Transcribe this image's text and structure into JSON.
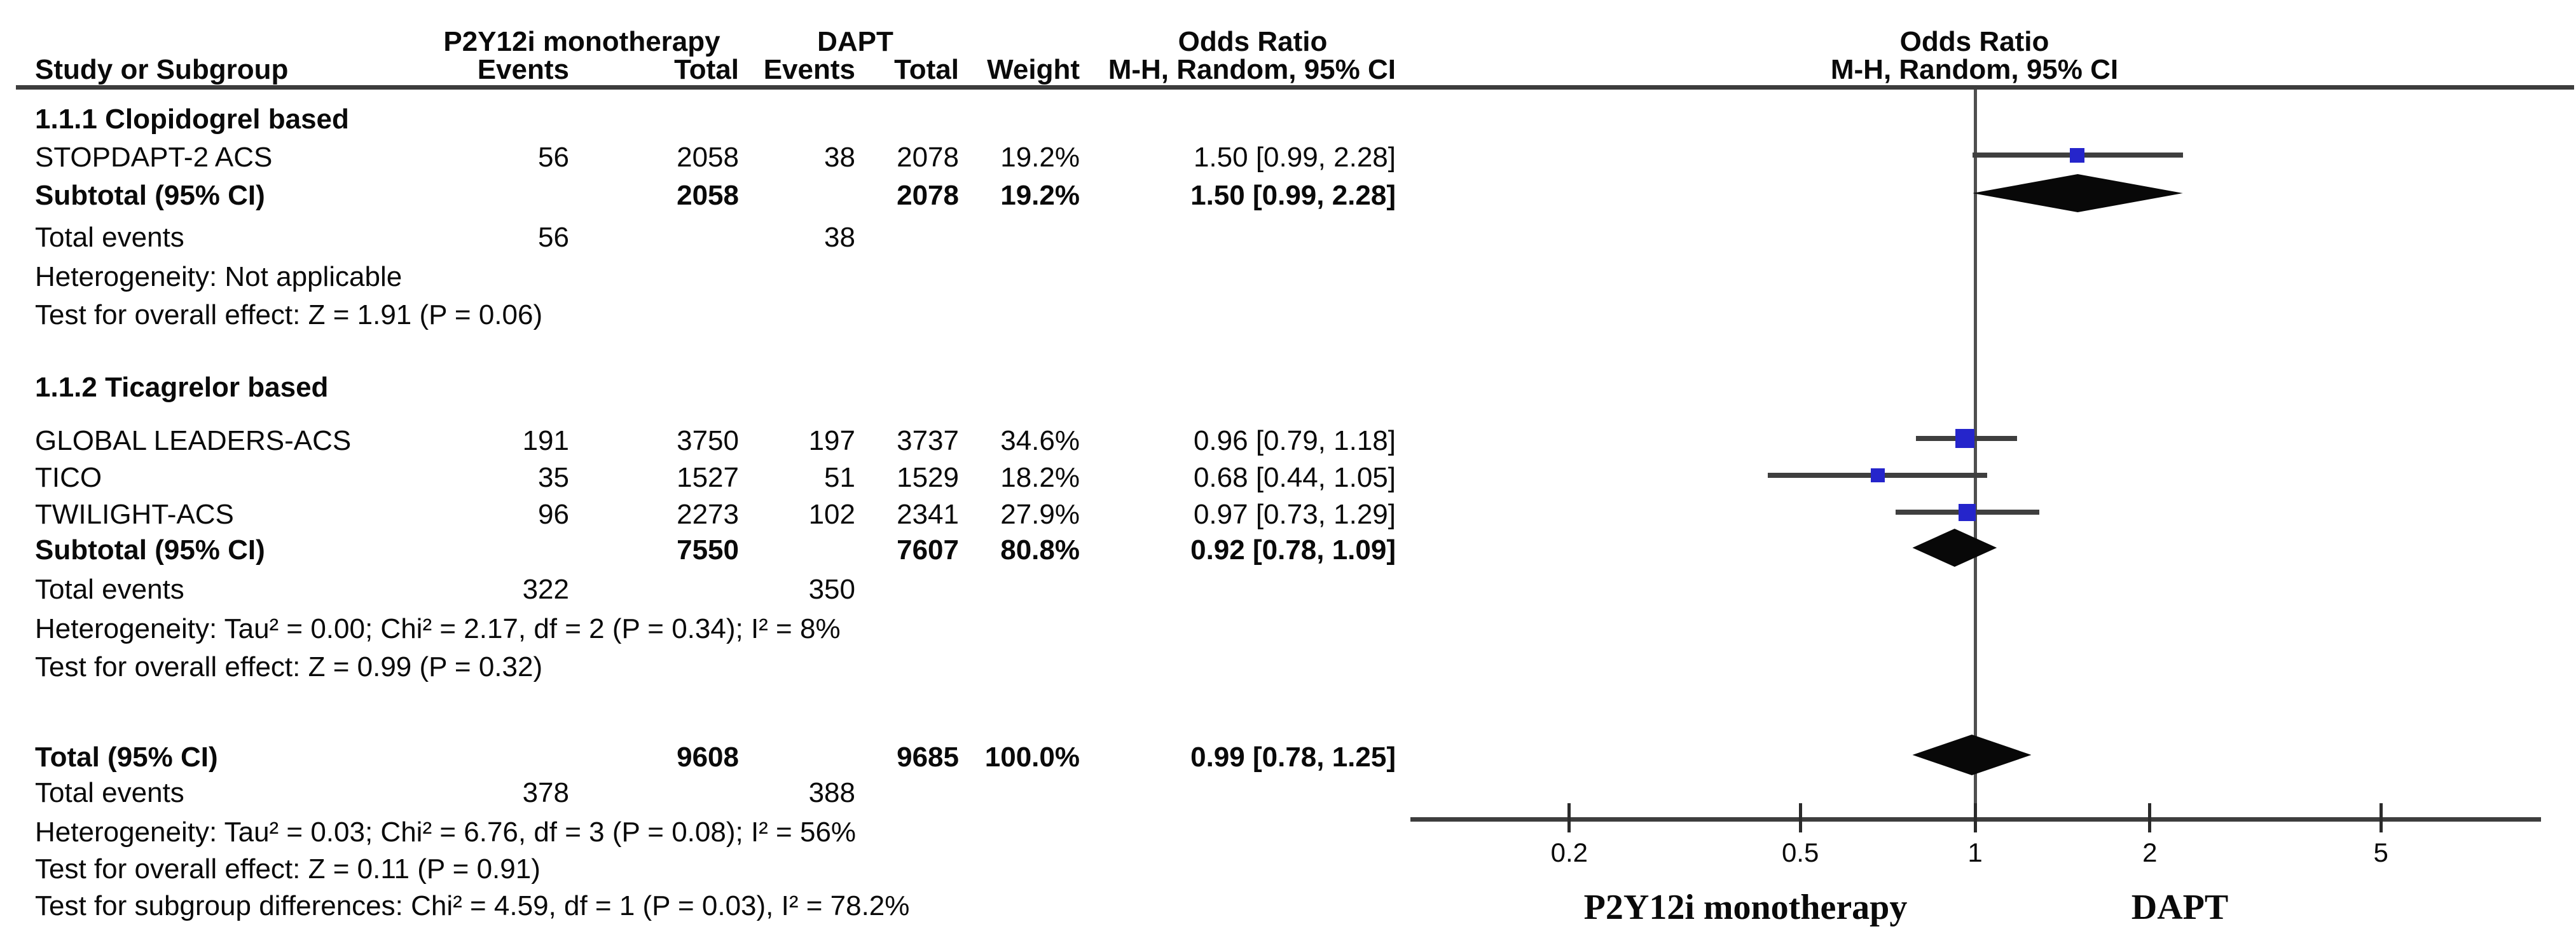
{
  "header": {
    "group1": "P2Y12i monotherapy",
    "group2": "DAPT",
    "study": "Study or Subgroup",
    "events": "Events",
    "total": "Total",
    "weight": "Weight",
    "or_title": "Odds Ratio",
    "or_sub": "M-H, Random, 95% CI",
    "plot_or_title": "Odds Ratio",
    "plot_or_sub": "M-H, Random, 95% CI"
  },
  "chart_data": {
    "type": "forest",
    "effect_measure": "Odds Ratio",
    "model": "M-H, Random, 95% CI",
    "x_axis": {
      "scale": "log",
      "ticks": [
        "0.2",
        "0.5",
        "1",
        "2",
        "5"
      ],
      "range": [
        0.106,
        9.4
      ],
      "left_label": "P2Y12i monotherapy",
      "right_label": "DAPT"
    },
    "subgroups": [
      {
        "name": "1.1.1 Clopidogrel based",
        "studies": [
          {
            "study": "STOPDAPT-2 ACS",
            "events1": "56",
            "total1": "2058",
            "events2": "38",
            "total2": "2078",
            "weight": "19.2%",
            "or_label": "1.50 [0.99, 2.28]",
            "or": 1.5,
            "ci_low": 0.99,
            "ci_high": 2.28
          }
        ],
        "subtotal": {
          "label": "Subtotal (95% CI)",
          "total1": "2058",
          "total2": "2078",
          "weight": "19.2%",
          "or_label": "1.50 [0.99, 2.28]",
          "or": 1.5,
          "ci_low": 0.99,
          "ci_high": 2.28
        },
        "total_events": {
          "label": "Total events",
          "events1": "56",
          "events2": "38"
        },
        "heterogeneity": "Heterogeneity: Not applicable",
        "overall_effect": "Test for overall effect: Z = 1.91 (P = 0.06)"
      },
      {
        "name": "1.1.2 Ticagrelor based",
        "studies": [
          {
            "study": "GLOBAL LEADERS-ACS",
            "events1": "191",
            "total1": "3750",
            "events2": "197",
            "total2": "3737",
            "weight": "34.6%",
            "or_label": "0.96 [0.79, 1.18]",
            "or": 0.96,
            "ci_low": 0.79,
            "ci_high": 1.18
          },
          {
            "study": "TICO",
            "events1": "35",
            "total1": "1527",
            "events2": "51",
            "total2": "1529",
            "weight": "18.2%",
            "or_label": "0.68 [0.44, 1.05]",
            "or": 0.68,
            "ci_low": 0.44,
            "ci_high": 1.05
          },
          {
            "study": "TWILIGHT-ACS",
            "events1": "96",
            "total1": "2273",
            "events2": "102",
            "total2": "2341",
            "weight": "27.9%",
            "or_label": "0.97 [0.73, 1.29]",
            "or": 0.97,
            "ci_low": 0.73,
            "ci_high": 1.29
          }
        ],
        "subtotal": {
          "label": "Subtotal (95% CI)",
          "total1": "7550",
          "total2": "7607",
          "weight": "80.8%",
          "or_label": "0.92 [0.78, 1.09]",
          "or": 0.92,
          "ci_low": 0.78,
          "ci_high": 1.09
        },
        "total_events": {
          "label": "Total events",
          "events1": "322",
          "events2": "350"
        },
        "heterogeneity": "Heterogeneity: Tau² = 0.00; Chi² = 2.17, df = 2 (P = 0.34); I² = 8%",
        "overall_effect": "Test for overall effect: Z = 0.99 (P = 0.32)"
      }
    ],
    "total": {
      "row": {
        "label": "Total (95% CI)",
        "total1": "9608",
        "total2": "9685",
        "weight": "100.0%",
        "or_label": "0.99 [0.78, 1.25]",
        "or": 0.99,
        "ci_low": 0.78,
        "ci_high": 1.25
      },
      "total_events": {
        "label": "Total events",
        "events1": "378",
        "events2": "388"
      },
      "heterogeneity": "Heterogeneity: Tau² = 0.03; Chi² = 6.76, df = 3 (P = 0.08); I² = 56%",
      "overall_effect": "Test for overall effect: Z = 0.11 (P = 0.91)",
      "subgroup_differences": "Test for subgroup differences: Chi² = 4.59, df = 1 (P = 0.03), I² = 78.2%"
    }
  }
}
